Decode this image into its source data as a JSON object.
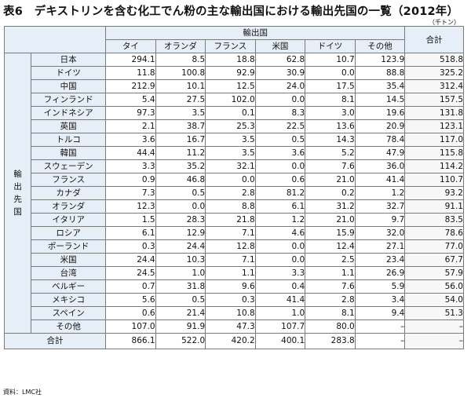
{
  "title": "表6　デキストリンを含む化工でん粉の主な輸出国における輸出先国の一覧（2012年）",
  "unit": "（千トン）",
  "header": {
    "import_group": "輸出国",
    "total": "合計",
    "side_label": [
      "輸",
      "出",
      "先",
      "国"
    ],
    "countries": [
      "タイ",
      "オランダ",
      "フランス",
      "米国",
      "ドイツ",
      "その他"
    ]
  },
  "rows": [
    {
      "label": "日本",
      "values": [
        "294.1",
        "8.5",
        "18.8",
        "62.8",
        "10.7",
        "123.9"
      ],
      "total": "518.8"
    },
    {
      "label": "ドイツ",
      "values": [
        "11.8",
        "100.8",
        "92.9",
        "30.9",
        "0.0",
        "88.8"
      ],
      "total": "325.2"
    },
    {
      "label": "中国",
      "values": [
        "212.9",
        "10.1",
        "12.5",
        "24.0",
        "17.5",
        "35.4"
      ],
      "total": "312.4"
    },
    {
      "label": "フィンランド",
      "values": [
        "5.4",
        "27.5",
        "102.0",
        "0.0",
        "8.1",
        "14.5"
      ],
      "total": "157.5"
    },
    {
      "label": "インドネシア",
      "values": [
        "97.3",
        "3.5",
        "0.1",
        "8.3",
        "3.0",
        "19.6"
      ],
      "total": "131.8"
    },
    {
      "label": "英国",
      "values": [
        "2.1",
        "38.7",
        "25.3",
        "22.5",
        "13.6",
        "20.9"
      ],
      "total": "123.1"
    },
    {
      "label": "トルコ",
      "values": [
        "3.6",
        "16.7",
        "3.5",
        "0.5",
        "14.3",
        "78.4"
      ],
      "total": "117.0"
    },
    {
      "label": "韓国",
      "values": [
        "44.4",
        "11.2",
        "3.5",
        "3.6",
        "5.2",
        "47.9"
      ],
      "total": "115.8"
    },
    {
      "label": "スウェーデン",
      "values": [
        "3.3",
        "35.2",
        "32.1",
        "0.0",
        "7.6",
        "36.0"
      ],
      "total": "114.2"
    },
    {
      "label": "フランス",
      "values": [
        "0.9",
        "46.8",
        "0.0",
        "0.6",
        "21.0",
        "41.4"
      ],
      "total": "110.7"
    },
    {
      "label": "カナダ",
      "values": [
        "7.3",
        "0.5",
        "2.8",
        "81.2",
        "0.2",
        "1.2"
      ],
      "total": "93.2"
    },
    {
      "label": "オランダ",
      "values": [
        "12.3",
        "0.0",
        "8.8",
        "6.1",
        "31.2",
        "32.7"
      ],
      "total": "91.1"
    },
    {
      "label": "イタリア",
      "values": [
        "1.5",
        "28.3",
        "21.8",
        "1.2",
        "21.0",
        "9.7"
      ],
      "total": "83.5"
    },
    {
      "label": "ロシア",
      "values": [
        "6.1",
        "12.9",
        "7.1",
        "4.6",
        "15.9",
        "32.0"
      ],
      "total": "78.6"
    },
    {
      "label": "ポーランド",
      "values": [
        "0.3",
        "24.4",
        "12.8",
        "0.0",
        "12.4",
        "27.1"
      ],
      "total": "77.0"
    },
    {
      "label": "米国",
      "values": [
        "24.4",
        "10.3",
        "7.1",
        "0.0",
        "2.5",
        "23.4"
      ],
      "total": "67.7"
    },
    {
      "label": "台湾",
      "values": [
        "24.5",
        "1.0",
        "1.1",
        "3.3",
        "1.1",
        "26.9"
      ],
      "total": "57.9"
    },
    {
      "label": "ベルギー",
      "values": [
        "0.7",
        "31.8",
        "9.6",
        "0.4",
        "7.6",
        "5.9"
      ],
      "total": "56.0"
    },
    {
      "label": "メキシコ",
      "values": [
        "5.6",
        "0.5",
        "0.3",
        "41.4",
        "2.8",
        "3.4"
      ],
      "total": "54.0"
    },
    {
      "label": "スペイン",
      "values": [
        "0.6",
        "21.4",
        "10.8",
        "1.0",
        "8.1",
        "9.4"
      ],
      "total": "51.3"
    },
    {
      "label": "その他",
      "values": [
        "107.0",
        "91.9",
        "47.3",
        "107.7",
        "80.0",
        "–"
      ],
      "total": "–"
    }
  ],
  "summary": {
    "label": "合計",
    "values": [
      "866.1",
      "522.0",
      "420.2",
      "400.1",
      "283.8",
      "–"
    ],
    "total": "–"
  },
  "source": "資料：LMC社"
}
